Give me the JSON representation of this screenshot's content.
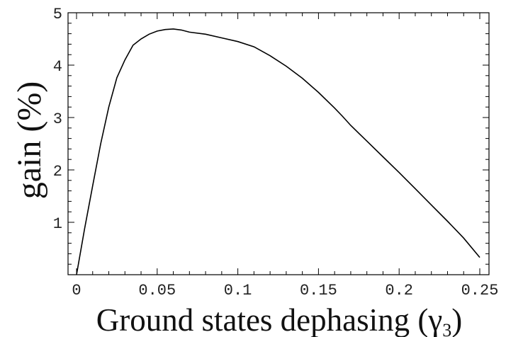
{
  "chart_data": {
    "type": "line",
    "title": "",
    "xlabel": "Ground states dephasing (γ",
    "xlabel_sub": "3",
    "xlabel_close": ")",
    "ylabel": "gain (%)",
    "xlim": [
      0,
      0.25
    ],
    "ylim": [
      0,
      5
    ],
    "grid": false,
    "xticks": [
      {
        "value": 0,
        "label": "0"
      },
      {
        "value": 0.05,
        "label": "0.05"
      },
      {
        "value": 0.1,
        "label": "0.1"
      },
      {
        "value": 0.15,
        "label": "0.15"
      },
      {
        "value": 0.2,
        "label": "0.2"
      },
      {
        "value": 0.25,
        "label": "0.25"
      }
    ],
    "yticks": [
      {
        "value": 1,
        "label": "1"
      },
      {
        "value": 2,
        "label": "2"
      },
      {
        "value": 3,
        "label": "3"
      },
      {
        "value": 4,
        "label": "4"
      },
      {
        "value": 5,
        "label": "5"
      }
    ],
    "series": [
      {
        "name": "",
        "x": [
          0.0,
          0.005,
          0.01,
          0.015,
          0.02,
          0.025,
          0.03,
          0.035,
          0.04,
          0.045,
          0.05,
          0.055,
          0.06,
          0.065,
          0.07,
          0.08,
          0.09,
          0.1,
          0.11,
          0.12,
          0.13,
          0.14,
          0.15,
          0.16,
          0.165,
          0.17,
          0.18,
          0.19,
          0.2,
          0.21,
          0.22,
          0.23,
          0.24,
          0.25
        ],
        "y": [
          0.0,
          0.88,
          1.7,
          2.5,
          3.2,
          3.76,
          4.1,
          4.38,
          4.5,
          4.59,
          4.65,
          4.68,
          4.69,
          4.67,
          4.63,
          4.59,
          4.52,
          4.45,
          4.35,
          4.18,
          3.98,
          3.75,
          3.48,
          3.18,
          3.02,
          2.85,
          2.55,
          2.25,
          1.95,
          1.64,
          1.33,
          1.02,
          0.7,
          0.33
        ]
      }
    ]
  }
}
